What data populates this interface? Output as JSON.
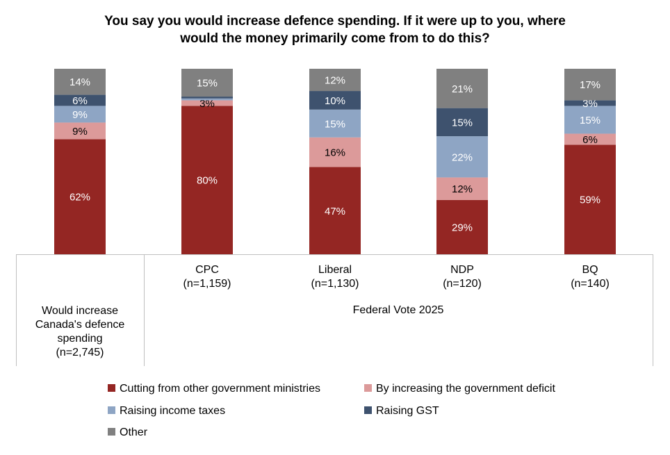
{
  "chart_data": {
    "type": "bar",
    "stacked": true,
    "percent_stacked": true,
    "title": "You say you would increase defence spending. If it were up to you, where would the money primarily come from to do this?",
    "title_lines": [
      "You say you would increase defence spending. If it were up to you, where",
      "would the money primarily come from to do this?"
    ],
    "categories": [
      [
        "Would increase",
        "Canada's defence",
        "spending",
        "(n=2,745)"
      ],
      [
        "CPC",
        "(n=1,159)"
      ],
      [
        "Liberal",
        "(n=1,130)"
      ],
      [
        "NDP",
        "(n=120)"
      ],
      [
        "BQ",
        "(n=140)"
      ]
    ],
    "group_label": "Federal Vote 2025",
    "series": [
      {
        "name": "Cutting from other government ministries",
        "color": "#942623",
        "label_color": "#ffffff",
        "values": [
          62,
          80,
          47,
          29,
          59
        ]
      },
      {
        "name": "By increasing the government deficit",
        "color": "#dc9a9a",
        "label_color": "#000000",
        "values": [
          9,
          3,
          16,
          12,
          6
        ]
      },
      {
        "name": "Raising income taxes",
        "color": "#8ea5c4",
        "label_color": "#ffffff",
        "values": [
          9,
          1,
          15,
          22,
          15
        ]
      },
      {
        "name": "Raising GST",
        "color": "#3e526e",
        "label_color": "#ffffff",
        "values": [
          6,
          1,
          10,
          15,
          3
        ]
      },
      {
        "name": "Other",
        "color": "#808080",
        "label_color": "#ffffff",
        "values": [
          14,
          15,
          12,
          21,
          17
        ]
      }
    ],
    "data_labels": [
      [
        "62%",
        "80%",
        "47%",
        "29%",
        "59%"
      ],
      [
        "9%",
        "3%",
        "16%",
        "12%",
        "6%"
      ],
      [
        "9%",
        "",
        "15%",
        "22%",
        "15%"
      ],
      [
        "6%",
        "",
        "10%",
        "15%",
        "3%"
      ],
      [
        "14%",
        "15%",
        "12%",
        "21%",
        "17%"
      ]
    ],
    "ylim": [
      0,
      100
    ],
    "grid": false,
    "legend_position": "bottom"
  }
}
